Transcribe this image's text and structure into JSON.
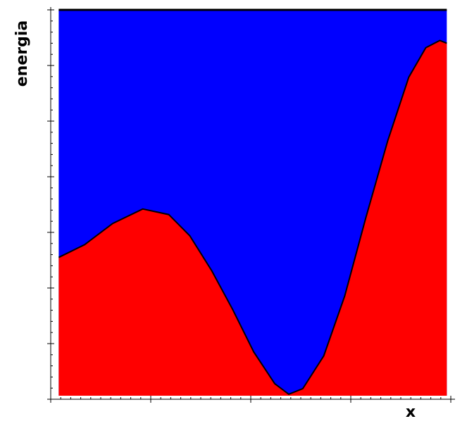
{
  "chart_data": {
    "type": "area",
    "xlabel": "x",
    "ylabel": "energia",
    "x": [
      0.8,
      3.4,
      6.2,
      9.2,
      11.8,
      13.9,
      16.1,
      18.2,
      20.3,
      22.4,
      23.8,
      25.2,
      27.3,
      29.4,
      31.5,
      33.7,
      35.8,
      37.5,
      38.9,
      39.6
    ],
    "values": [
      2.55,
      2.78,
      3.16,
      3.42,
      3.32,
      2.94,
      2.31,
      1.61,
      0.85,
      0.28,
      0.09,
      0.19,
      0.78,
      1.86,
      3.26,
      4.65,
      5.79,
      6.32,
      6.45,
      6.4
    ],
    "color": "#ff0000",
    "above_color": "#0000ff",
    "xlim": [
      0,
      40
    ],
    "ylim": [
      0,
      7
    ],
    "xticks": [
      0,
      1,
      2,
      3,
      4,
      5,
      6,
      7,
      8,
      9,
      10,
      11,
      12,
      13,
      14,
      15,
      16,
      17,
      18,
      19,
      20,
      21,
      22,
      23,
      24,
      25,
      26,
      27,
      28,
      29,
      30,
      31,
      32,
      33,
      34,
      35,
      36,
      37,
      38,
      39,
      40
    ],
    "yticks": [
      0,
      0.2,
      0.4,
      0.6,
      0.8,
      1,
      1.2,
      1.4,
      1.6,
      1.8,
      2,
      2.2,
      2.4,
      2.6,
      2.8,
      3,
      3.2,
      3.4,
      3.6,
      3.8,
      4,
      4.2,
      4.4,
      4.6,
      4.8,
      5,
      5.2,
      5.4,
      5.6,
      5.8,
      6,
      6.2,
      6.4,
      6.6,
      6.8,
      7
    ]
  }
}
